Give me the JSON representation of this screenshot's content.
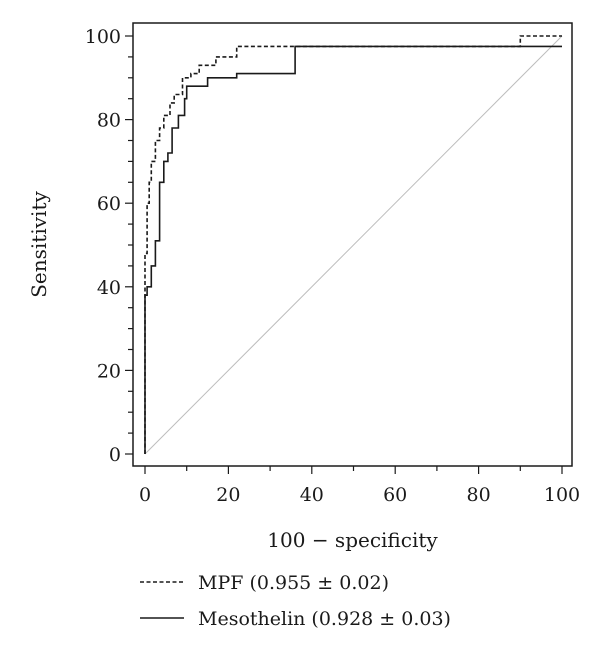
{
  "chart_data": {
    "type": "line",
    "xlabel": "100 − specificity",
    "ylabel": "Sensitivity",
    "xlim": [
      0,
      100
    ],
    "ylim": [
      0,
      100
    ],
    "xticks": [
      0,
      20,
      40,
      60,
      80,
      100
    ],
    "yticks": [
      0,
      20,
      40,
      60,
      80,
      100
    ],
    "grid": false,
    "legend_position": "bottom",
    "reference_line": {
      "x": [
        0,
        100
      ],
      "y": [
        0,
        100
      ],
      "color": "#bdbdbd"
    },
    "series": [
      {
        "name": "MPF",
        "legend_label": "MPF (0.955 ± 0.02)",
        "style": "dashed",
        "color": "#1a1a1a",
        "x": [
          0,
          0,
          0.5,
          0.5,
          1,
          1,
          1.5,
          1.5,
          2.5,
          2.5,
          3.5,
          3.5,
          4.5,
          4.5,
          6,
          6,
          7,
          7,
          9,
          9,
          11,
          11,
          13,
          13,
          17,
          17,
          22,
          22,
          90,
          90,
          100
        ],
        "y": [
          0,
          48,
          48,
          60,
          60,
          65,
          65,
          70,
          70,
          75,
          75,
          78,
          78,
          81,
          81,
          84,
          84,
          86,
          86,
          90,
          90,
          91,
          91,
          93,
          93,
          95,
          95,
          97.5,
          97.5,
          100,
          100
        ]
      },
      {
        "name": "Mesothelin",
        "legend_label": "Mesothelin (0.928 ± 0.03)",
        "style": "solid",
        "color": "#1a1a1a",
        "x": [
          0,
          0,
          0.5,
          0.5,
          1.5,
          1.5,
          2.5,
          2.5,
          3.5,
          3.5,
          4.5,
          4.5,
          5.5,
          5.5,
          6.5,
          6.5,
          8,
          8,
          9.5,
          9.5,
          10,
          10,
          15,
          15,
          22,
          22,
          36,
          36,
          100
        ],
        "y": [
          0,
          38,
          38,
          40,
          40,
          45,
          45,
          51,
          51,
          65,
          65,
          70,
          70,
          72,
          72,
          78,
          78,
          81,
          81,
          85,
          85,
          88,
          88,
          90,
          90,
          91,
          91,
          97.5,
          97.5
        ]
      }
    ]
  }
}
